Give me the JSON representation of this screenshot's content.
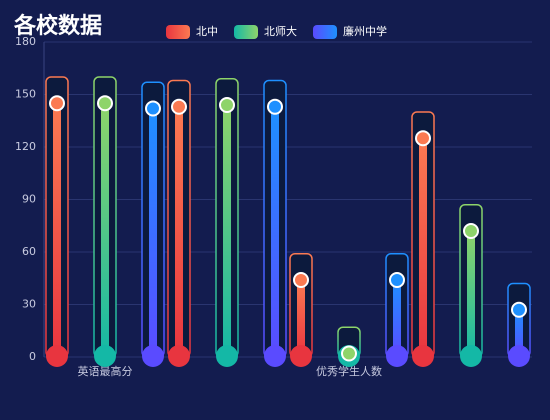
{
  "chart_data": {
    "type": "thermometer-bar",
    "title": "各校数据",
    "categories": [
      "英语最高分",
      null,
      "优秀学生人数",
      null
    ],
    "ylim": [
      0,
      180
    ],
    "yticks": [
      0,
      30,
      60,
      90,
      120,
      150,
      180
    ],
    "grid": true,
    "series": [
      {
        "name": "北中",
        "color": "#e8353f",
        "color_end": "#fb7a52",
        "values": [
          145,
          143,
          44,
          125
        ],
        "frame": [
          160,
          158,
          59,
          140
        ]
      },
      {
        "name": "北师大",
        "color": "#14b8a6",
        "color_end": "#8ed46a",
        "values": [
          145,
          144,
          2,
          72
        ],
        "frame": [
          160,
          159,
          17,
          87
        ]
      },
      {
        "name": "廉州中学",
        "color": "#5a4bff",
        "color_end": "#1e90ff",
        "values": [
          142,
          143,
          44,
          27
        ],
        "frame": [
          157,
          158,
          59,
          42
        ]
      }
    ]
  }
}
